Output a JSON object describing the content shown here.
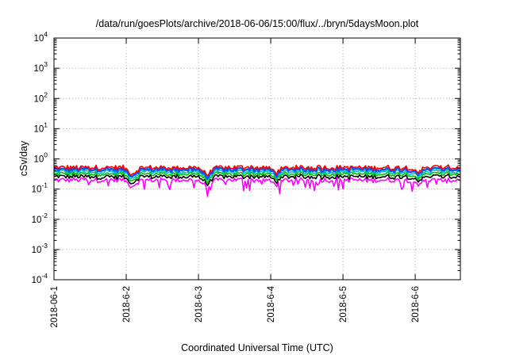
{
  "chart_data": {
    "type": "line",
    "title": "/data/run/goesPlots/archive/2018-06-06/15:00/flux/../bryn/5daysMoon.plot",
    "xlabel": "Coordinated Universal Time (UTC)",
    "ylabel": "cSv/day",
    "y_scale": "log",
    "ylim": [
      0.0001,
      10000
    ],
    "y_ticks": [
      {
        "value": 0.0001,
        "base": "10",
        "exp": "-4"
      },
      {
        "value": 0.001,
        "base": "10",
        "exp": "-3"
      },
      {
        "value": 0.01,
        "base": "10",
        "exp": "-2"
      },
      {
        "value": 0.1,
        "base": "10",
        "exp": "-1"
      },
      {
        "value": 1,
        "base": "10",
        "exp": "0"
      },
      {
        "value": 10,
        "base": "10",
        "exp": "1"
      },
      {
        "value": 100,
        "base": "10",
        "exp": "2"
      },
      {
        "value": 1000,
        "base": "10",
        "exp": "3"
      },
      {
        "value": 10000,
        "base": "10",
        "exp": "4"
      }
    ],
    "xlim": [
      "2018-06-01 00:00",
      "2018-06-06 15:00"
    ],
    "x_tick_labels": [
      "2018-06-1",
      "2018-6-2",
      "2018-6-3",
      "2018-6-4",
      "2018-6-5",
      "2018-6-6"
    ],
    "x_tick_dates": [
      "2018-06-01",
      "2018-06-02",
      "2018-06-03",
      "2018-06-04",
      "2018-06-05",
      "2018-06-06"
    ],
    "grid": true,
    "legend": "none",
    "series": [
      {
        "color": "#ff00ff",
        "values_day_profile": {
          "median": 0.2,
          "dips_to": 0.08
        }
      },
      {
        "color": "#000000",
        "values_day_profile": {
          "median": 0.26
        }
      },
      {
        "color": "#00c000",
        "values_day_profile": {
          "median": 0.32
        }
      },
      {
        "color": "#00bfbf",
        "values_day_profile": {
          "median": 0.38
        }
      },
      {
        "color": "#0055ff",
        "values_day_profile": {
          "median": 0.45
        }
      },
      {
        "color": "#ff0000",
        "values_day_profile": {
          "median": 0.52
        }
      }
    ],
    "depressions": [
      {
        "date": "2018-06-02 02:00",
        "factor": 0.6
      },
      {
        "date": "2018-06-03 03:00",
        "factor": 0.55
      },
      {
        "date": "2018-06-04 02:00",
        "factor": 0.7
      },
      {
        "date": "2018-06-06 01:00",
        "factor": 0.75
      }
    ]
  }
}
